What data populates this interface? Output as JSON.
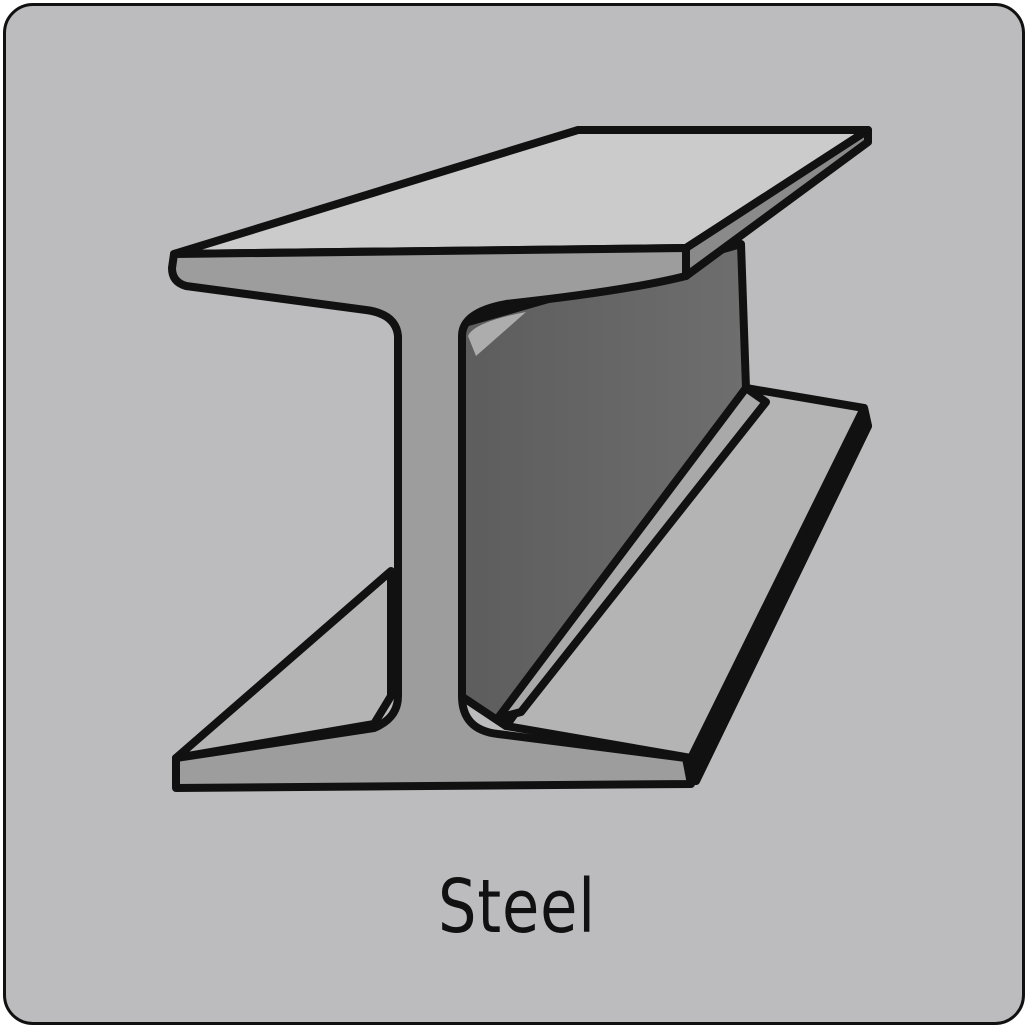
{
  "tile": {
    "label": "Steel",
    "icon": "steel-i-beam-icon",
    "colors": {
      "background": "#bcbcbe",
      "outline": "#111111",
      "flange_top": "#cbcbcb",
      "flange_front": "#9d9d9d",
      "web_side": "#6a6a6a",
      "bottom_flange": "#b4b4b4"
    }
  }
}
